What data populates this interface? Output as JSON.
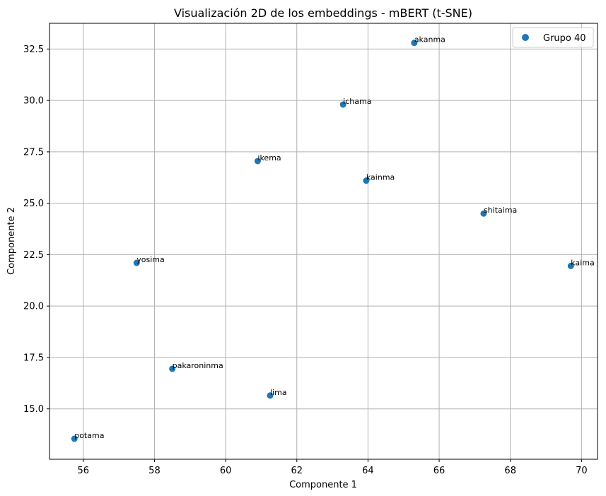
{
  "chart_data": {
    "type": "scatter",
    "title": "Visualización 2D de los embeddings - mBERT (t-SNE)",
    "xlabel": "Componente 1",
    "ylabel": "Componente 2",
    "xlim": [
      55.05,
      70.45
    ],
    "ylim": [
      12.55,
      33.75
    ],
    "xticks": [
      56,
      58,
      60,
      62,
      64,
      66,
      68,
      70
    ],
    "yticks": [
      15.0,
      17.5,
      20.0,
      22.5,
      25.0,
      27.5,
      30.0,
      32.5
    ],
    "ytick_labels": [
      "15.0",
      "17.5",
      "20.0",
      "22.5",
      "25.0",
      "27.5",
      "30.0",
      "32.5"
    ],
    "grid": true,
    "legend_position": "top-right",
    "marker_color": "#1f77b4",
    "series": [
      {
        "name": "Grupo 40",
        "points": [
          {
            "x": 65.3,
            "y": 32.8,
            "label": "akanma"
          },
          {
            "x": 63.3,
            "y": 29.8,
            "label": "ichama"
          },
          {
            "x": 60.9,
            "y": 27.05,
            "label": "ikema"
          },
          {
            "x": 63.95,
            "y": 26.1,
            "label": "kainma"
          },
          {
            "x": 67.25,
            "y": 24.5,
            "label": "shitaima"
          },
          {
            "x": 69.7,
            "y": 21.95,
            "label": "kaima"
          },
          {
            "x": 57.5,
            "y": 22.1,
            "label": "yosima"
          },
          {
            "x": 58.5,
            "y": 16.95,
            "label": "pakaroninma"
          },
          {
            "x": 61.25,
            "y": 15.65,
            "label": "lima"
          },
          {
            "x": 55.75,
            "y": 13.55,
            "label": "potama"
          }
        ]
      }
    ]
  }
}
